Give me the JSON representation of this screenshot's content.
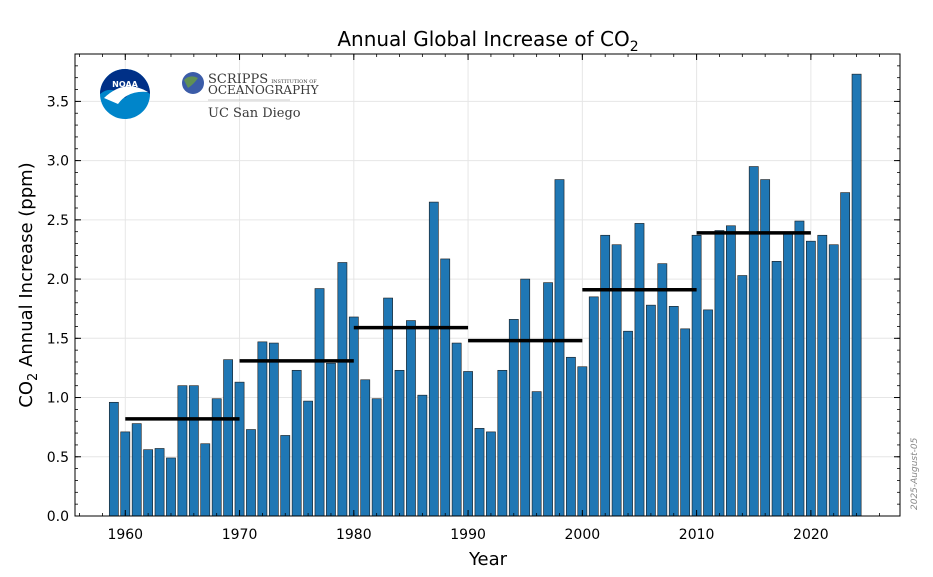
{
  "chart_data": {
    "type": "bar",
    "title": "Annual Global Increase of CO",
    "title_sub": "2",
    "xlabel": "Year",
    "ylabel": {
      "pre": "CO",
      "sub": "2",
      "post": " Annual Increase (ppm)"
    },
    "xlim": [
      1955.6,
      2027.8
    ],
    "ylim": [
      0,
      3.9
    ],
    "xticks": [
      1960,
      1970,
      1980,
      1990,
      2000,
      2010,
      2020
    ],
    "yticks": [
      "0.0",
      "0.5",
      "1.0",
      "1.5",
      "2.0",
      "2.5",
      "3.0",
      "3.5"
    ],
    "grid": true,
    "bar_color": "#1f77b4",
    "years": [
      1959,
      1960,
      1961,
      1962,
      1963,
      1964,
      1965,
      1966,
      1967,
      1968,
      1969,
      1970,
      1971,
      1972,
      1973,
      1974,
      1975,
      1976,
      1977,
      1978,
      1979,
      1980,
      1981,
      1982,
      1983,
      1984,
      1985,
      1986,
      1987,
      1988,
      1989,
      1990,
      1991,
      1992,
      1993,
      1994,
      1995,
      1996,
      1997,
      1998,
      1999,
      2000,
      2001,
      2002,
      2003,
      2004,
      2005,
      2006,
      2007,
      2008,
      2009,
      2010,
      2011,
      2012,
      2013,
      2014,
      2015,
      2016,
      2017,
      2018,
      2019,
      2020,
      2021,
      2022,
      2023,
      2024
    ],
    "values": [
      0.96,
      0.71,
      0.78,
      0.56,
      0.57,
      0.49,
      1.1,
      1.1,
      0.61,
      0.99,
      1.32,
      1.13,
      0.73,
      1.47,
      1.46,
      0.68,
      1.23,
      0.97,
      1.92,
      1.29,
      2.14,
      1.68,
      1.15,
      0.99,
      1.84,
      1.23,
      1.65,
      1.02,
      2.65,
      2.17,
      1.46,
      1.22,
      0.74,
      0.71,
      1.23,
      1.66,
      2.0,
      1.05,
      1.97,
      2.84,
      1.34,
      1.26,
      1.85,
      2.37,
      2.29,
      1.56,
      2.47,
      1.78,
      2.13,
      1.77,
      1.58,
      2.37,
      1.74,
      2.41,
      2.45,
      2.03,
      2.95,
      2.84,
      2.15,
      2.39,
      2.49,
      2.32,
      2.37,
      2.29,
      2.73,
      3.73
    ],
    "decade_means": [
      {
        "start": 1960,
        "end": 1970,
        "value": 0.82
      },
      {
        "start": 1970,
        "end": 1980,
        "value": 1.31
      },
      {
        "start": 1980,
        "end": 1990,
        "value": 1.59
      },
      {
        "start": 1990,
        "end": 2000,
        "value": 1.48
      },
      {
        "start": 2000,
        "end": 2010,
        "value": 1.91
      },
      {
        "start": 2010,
        "end": 2020,
        "value": 2.39
      }
    ],
    "date_stamp": "2025-August-05"
  },
  "logos": {
    "noaa_text": "NOAA",
    "scripps_line1": "SCRIPPS",
    "scripps_line1_small": "INSTITUTION OF",
    "scripps_line2": "OCEANOGRAPHY",
    "ucsd": "UC San Diego",
    "colors": {
      "noaa_blue": "#0085ca",
      "noaa_dark": "#003087",
      "scripps_blue": "#3b5ca8"
    }
  }
}
